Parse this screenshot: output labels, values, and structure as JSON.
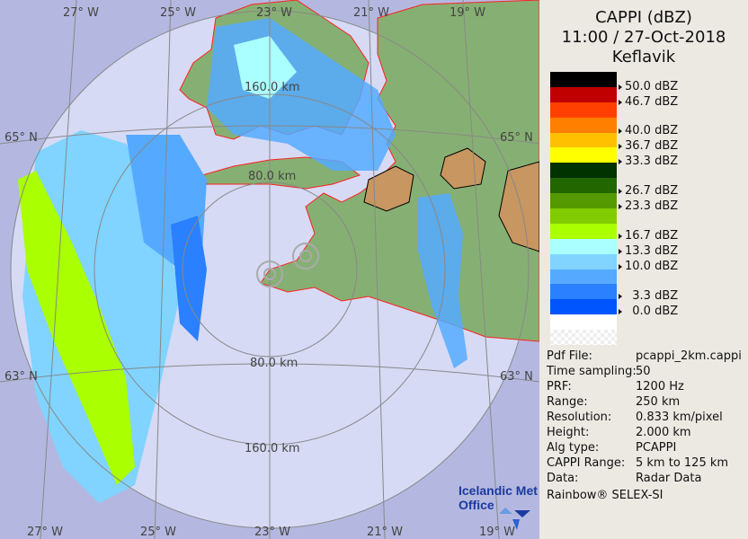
{
  "header": {
    "title": "CAPPI (dBZ)",
    "datetime": "11:00 / 27-Oct-2018",
    "station": "Keflavik"
  },
  "legend": {
    "bands": [
      "#000000",
      "#c00000",
      "#ff4000",
      "#ff8000",
      "#ffc000",
      "#ffff00",
      "#003300",
      "#226600",
      "#559900",
      "#80cc00",
      "#aaff00",
      "#aaffff",
      "#80d4ff",
      "#55aaff",
      "#2a80ff",
      "#0055ff",
      "#ffffff"
    ],
    "labels": [
      "50.0 dBZ",
      "46.7 dBZ",
      "40.0 dBZ",
      "36.7 dBZ",
      "33.3 dBZ",
      "26.7 dBZ",
      "23.3 dBZ",
      "16.7 dBZ",
      "13.3 dBZ",
      "10.0 dBZ",
      "  3.3 dBZ",
      "  0.0 dBZ"
    ]
  },
  "info": [
    {
      "key": "Pdf File:",
      "value": "pcappi_2km.cappi"
    },
    {
      "key": "Time sampling:",
      "value": "50"
    },
    {
      "key": "PRF:",
      "value": "1200 Hz"
    },
    {
      "key": "Range:",
      "value": "250 km"
    },
    {
      "key": "Resolution:",
      "value": "0.833 km/pixel"
    },
    {
      "key": "Height:",
      "value": "2.000 km"
    },
    {
      "key": "Alg type:",
      "value": "PCAPPI"
    },
    {
      "key": "CAPPI Range:",
      "value": "5 km to 125 km"
    },
    {
      "key": "Data:",
      "value": "Radar Data"
    }
  ],
  "credit": "Rainbow® SELEX-SI",
  "map": {
    "longitudes_top": [
      "27° W",
      "25° W",
      "23° W",
      "21° W",
      "19° W"
    ],
    "longitudes_bottom": [
      "27° W",
      "25° W",
      "23° W",
      "21° W",
      "19° W"
    ],
    "lat_65": "65° N",
    "lat_63": "63° N",
    "range_rings": [
      "80.0 km",
      "160.0 km"
    ],
    "logo": "Icelandic Met Office",
    "colors": {
      "outside": "#b4b8e0",
      "inside": "#d6daf5",
      "land": "#86b073",
      "coast": "#ff2020",
      "graticule": "#888888"
    }
  }
}
